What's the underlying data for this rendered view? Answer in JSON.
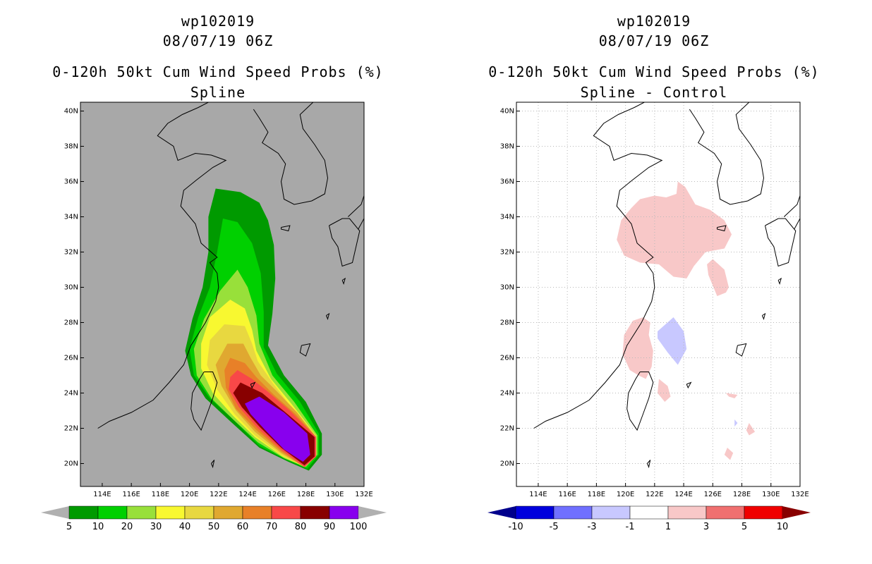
{
  "left": {
    "title_line1": "wp102019",
    "title_line2": "08/07/19 06Z",
    "title_line3": "0-120h 50kt Cum Wind Speed Probs (%)",
    "title_line4": "Spline",
    "colorbar": {
      "labels": [
        "5",
        "10",
        "20",
        "30",
        "40",
        "50",
        "60",
        "70",
        "80",
        "90",
        "100"
      ],
      "colors": [
        "#009a00",
        "#00d000",
        "#98e03a",
        "#f8f830",
        "#e8d840",
        "#e0a830",
        "#e88028",
        "#f84848",
        "#880000",
        "#8800ee"
      ],
      "arrow_color": "#b0b0b0"
    }
  },
  "right": {
    "title_line1": "wp102019",
    "title_line2": "08/07/19 06Z",
    "title_line3": "0-120h 50kt Cum Wind Speed Probs (%)",
    "title_line4": "Spline - Control",
    "colorbar": {
      "labels": [
        "-10",
        "-5",
        "-3",
        "-1",
        "1",
        "3",
        "5",
        "10"
      ],
      "colors": [
        "#0000dd",
        "#7070ff",
        "#c8c8ff",
        "#ffffff",
        "#f8c8c8",
        "#f07070",
        "#f00000"
      ],
      "arrow_left_color": "#00008c",
      "arrow_right_color": "#880000"
    }
  },
  "chart_data": [
    {
      "type": "heatmap",
      "title": "0-120h 50kt Cum Wind Speed Probs (%) - Spline",
      "storm": "wp102019",
      "valid": "08/07/19 06Z",
      "x_ticks": [
        "114E",
        "116E",
        "118E",
        "120E",
        "122E",
        "124E",
        "126E",
        "128E",
        "130E",
        "132E"
      ],
      "y_ticks": [
        "20N",
        "22N",
        "24N",
        "26N",
        "28N",
        "30N",
        "32N",
        "34N",
        "36N",
        "38N",
        "40N"
      ],
      "xlim": [
        112.5,
        132
      ],
      "ylim": [
        18.7,
        40.5
      ],
      "background_color": "#a8a8a8",
      "contour_levels": [
        5,
        10,
        20,
        30,
        40,
        50,
        60,
        70,
        80,
        90,
        100
      ],
      "contours": [
        {
          "level": 5,
          "color": "#009a00",
          "polygon": [
            [
              121.8,
              35.6
            ],
            [
              123.5,
              35.4
            ],
            [
              124.8,
              34.8
            ],
            [
              125.4,
              33.8
            ],
            [
              125.8,
              32.4
            ],
            [
              125.9,
              30.5
            ],
            [
              125.7,
              28.5
            ],
            [
              125.4,
              26.7
            ],
            [
              126.5,
              25.0
            ],
            [
              128.0,
              23.5
            ],
            [
              129.1,
              21.7
            ],
            [
              129.1,
              20.5
            ],
            [
              128.2,
              19.6
            ],
            [
              126.8,
              20.1
            ],
            [
              124.8,
              20.9
            ],
            [
              122.8,
              22.4
            ],
            [
              121.1,
              23.7
            ],
            [
              120.1,
              25.0
            ],
            [
              119.7,
              26.4
            ],
            [
              120.2,
              28.2
            ],
            [
              120.9,
              30.0
            ],
            [
              121.3,
              32.0
            ],
            [
              121.3,
              34.0
            ]
          ]
        },
        {
          "level": 10,
          "color": "#00d000",
          "polygon": [
            [
              122.3,
              33.9
            ],
            [
              123.3,
              33.7
            ],
            [
              124.3,
              32.5
            ],
            [
              124.9,
              30.8
            ],
            [
              125.1,
              28.6
            ],
            [
              125.1,
              26.6
            ],
            [
              126.0,
              25.1
            ],
            [
              127.6,
              23.5
            ],
            [
              128.9,
              21.7
            ],
            [
              128.9,
              20.5
            ],
            [
              128.1,
              19.7
            ],
            [
              126.7,
              20.2
            ],
            [
              124.8,
              21.0
            ],
            [
              123.0,
              22.5
            ],
            [
              121.4,
              23.7
            ],
            [
              120.3,
              25.0
            ],
            [
              120.0,
              26.5
            ],
            [
              120.6,
              28.3
            ],
            [
              121.4,
              30.0
            ],
            [
              121.9,
              32.0
            ]
          ]
        },
        {
          "level": 20,
          "color": "#98e03a",
          "polygon": [
            [
              123.3,
              31.0
            ],
            [
              124.0,
              30.0
            ],
            [
              124.6,
              28.4
            ],
            [
              124.8,
              26.8
            ],
            [
              125.7,
              25.0
            ],
            [
              127.2,
              23.5
            ],
            [
              128.8,
              21.6
            ],
            [
              128.8,
              20.5
            ],
            [
              128.0,
              19.8
            ],
            [
              126.5,
              20.3
            ],
            [
              124.7,
              21.2
            ],
            [
              123.0,
              22.5
            ],
            [
              121.5,
              23.7
            ],
            [
              120.5,
              25.0
            ],
            [
              120.3,
              26.5
            ],
            [
              121.0,
              28.2
            ],
            [
              122.1,
              29.8
            ]
          ]
        },
        {
          "level": 30,
          "color": "#f8f830",
          "polygon": [
            [
              122.8,
              29.3
            ],
            [
              123.8,
              28.8
            ],
            [
              124.3,
              27.6
            ],
            [
              124.6,
              26.4
            ],
            [
              125.6,
              24.8
            ],
            [
              127.0,
              23.4
            ],
            [
              128.7,
              21.6
            ],
            [
              128.7,
              20.5
            ],
            [
              127.9,
              19.8
            ],
            [
              126.4,
              20.4
            ],
            [
              124.5,
              21.5
            ],
            [
              123.0,
              22.7
            ],
            [
              121.6,
              24.0
            ],
            [
              120.8,
              25.4
            ],
            [
              120.8,
              26.8
            ],
            [
              121.4,
              28.3
            ]
          ]
        },
        {
          "level": 40,
          "color": "#e8d840",
          "polygon": [
            [
              122.4,
              27.9
            ],
            [
              123.8,
              27.8
            ],
            [
              124.3,
              26.8
            ],
            [
              124.7,
              25.8
            ],
            [
              125.7,
              24.6
            ],
            [
              127.0,
              23.2
            ],
            [
              128.7,
              21.6
            ],
            [
              128.7,
              20.4
            ],
            [
              127.9,
              19.8
            ],
            [
              126.3,
              20.5
            ],
            [
              124.5,
              21.6
            ],
            [
              123.1,
              22.8
            ],
            [
              121.9,
              24.2
            ],
            [
              121.2,
              25.6
            ],
            [
              121.4,
              27.0
            ]
          ]
        },
        {
          "level": 50,
          "color": "#e0a830",
          "polygon": [
            [
              122.6,
              26.8
            ],
            [
              123.7,
              26.8
            ],
            [
              124.2,
              26.0
            ],
            [
              124.9,
              25.0
            ],
            [
              126.0,
              24.1
            ],
            [
              127.4,
              22.9
            ],
            [
              128.7,
              21.5
            ],
            [
              128.7,
              20.4
            ],
            [
              127.9,
              19.8
            ],
            [
              126.3,
              20.6
            ],
            [
              124.5,
              21.8
            ],
            [
              123.2,
              23.0
            ],
            [
              122.2,
              24.4
            ],
            [
              121.8,
              25.6
            ]
          ]
        },
        {
          "level": 60,
          "color": "#e88028",
          "polygon": [
            [
              122.8,
              26.0
            ],
            [
              123.8,
              25.7
            ],
            [
              124.6,
              24.9
            ],
            [
              125.8,
              23.9
            ],
            [
              127.3,
              22.8
            ],
            [
              128.7,
              21.5
            ],
            [
              128.7,
              20.4
            ],
            [
              127.9,
              19.8
            ],
            [
              126.3,
              20.7
            ],
            [
              124.6,
              21.9
            ],
            [
              123.2,
              23.1
            ],
            [
              122.5,
              24.3
            ],
            [
              122.4,
              25.3
            ]
          ]
        },
        {
          "level": 70,
          "color": "#f84848",
          "polygon": [
            [
              123.3,
              25.3
            ],
            [
              124.3,
              24.8
            ],
            [
              125.5,
              24.0
            ],
            [
              126.9,
              23.0
            ],
            [
              128.7,
              21.5
            ],
            [
              128.7,
              20.4
            ],
            [
              127.9,
              19.8
            ],
            [
              126.3,
              20.8
            ],
            [
              124.7,
              22.0
            ],
            [
              123.4,
              23.2
            ],
            [
              122.7,
              24.2
            ],
            [
              122.8,
              24.9
            ]
          ]
        },
        {
          "level": 80,
          "color": "#880000",
          "polygon": [
            [
              123.5,
              24.6
            ],
            [
              125.0,
              24.0
            ],
            [
              126.6,
              22.9
            ],
            [
              128.6,
              21.5
            ],
            [
              128.6,
              20.4
            ],
            [
              127.9,
              19.9
            ],
            [
              126.3,
              20.9
            ],
            [
              124.8,
              22.1
            ],
            [
              123.6,
              23.2
            ],
            [
              123.0,
              24.0
            ]
          ]
        },
        {
          "level": 90,
          "color": "#8800ee",
          "polygon": [
            [
              124.8,
              23.8
            ],
            [
              126.5,
              22.9
            ],
            [
              128.1,
              21.7
            ],
            [
              128.3,
              20.5
            ],
            [
              127.8,
              20.1
            ],
            [
              126.5,
              20.8
            ],
            [
              125.2,
              21.9
            ],
            [
              124.2,
              22.8
            ],
            [
              123.8,
              23.4
            ]
          ]
        }
      ]
    },
    {
      "type": "heatmap",
      "title": "0-120h 50kt Cum Wind Speed Probs (%) - Spline - Control",
      "storm": "wp102019",
      "valid": "08/07/19 06Z",
      "x_ticks": [
        "114E",
        "116E",
        "118E",
        "120E",
        "122E",
        "124E",
        "126E",
        "128E",
        "130E",
        "132E"
      ],
      "y_ticks": [
        "20N",
        "22N",
        "24N",
        "26N",
        "28N",
        "30N",
        "32N",
        "34N",
        "36N",
        "38N",
        "40N"
      ],
      "xlim": [
        112.5,
        132
      ],
      "ylim": [
        18.7,
        40.5
      ],
      "background_color": "#ffffff",
      "grid": true,
      "contour_levels": [
        -10,
        -5,
        -3,
        -1,
        1,
        3,
        5,
        10
      ],
      "contours": [
        {
          "level": 1,
          "color": "#f8c8c8",
          "polygon": [
            [
              123.6,
              36.0
            ],
            [
              124.1,
              35.7
            ],
            [
              124.8,
              34.7
            ],
            [
              125.8,
              34.4
            ],
            [
              126.8,
              33.8
            ],
            [
              127.3,
              33.0
            ],
            [
              126.8,
              32.2
            ],
            [
              125.5,
              32.0
            ],
            [
              124.7,
              31.2
            ],
            [
              124.2,
              30.5
            ],
            [
              123.3,
              30.6
            ],
            [
              122.3,
              31.3
            ],
            [
              121.0,
              31.4
            ],
            [
              119.9,
              31.8
            ],
            [
              119.4,
              32.7
            ],
            [
              119.7,
              33.8
            ],
            [
              120.4,
              34.5
            ],
            [
              121.0,
              35.0
            ],
            [
              122.0,
              35.2
            ],
            [
              122.8,
              35.1
            ],
            [
              123.5,
              35.3
            ]
          ]
        },
        {
          "level": 1,
          "color": "#f8c8c8",
          "polygon": [
            [
              126.0,
              31.6
            ],
            [
              126.8,
              31.0
            ],
            [
              127.1,
              30.0
            ],
            [
              126.9,
              29.7
            ],
            [
              126.3,
              29.5
            ],
            [
              125.7,
              30.7
            ],
            [
              125.6,
              31.3
            ]
          ]
        },
        {
          "level": 1,
          "color": "#f8c8c8",
          "polygon": [
            [
              120.5,
              28.1
            ],
            [
              121.2,
              28.3
            ],
            [
              121.7,
              28.0
            ],
            [
              121.6,
              27.3
            ],
            [
              121.9,
              26.4
            ],
            [
              121.8,
              25.5
            ],
            [
              121.4,
              24.8
            ],
            [
              120.9,
              25.0
            ],
            [
              120.3,
              25.3
            ],
            [
              119.8,
              26.2
            ],
            [
              119.9,
              27.3
            ]
          ]
        },
        {
          "level": 1,
          "color": "#f8c8c8",
          "polygon": [
            [
              122.3,
              24.8
            ],
            [
              122.9,
              24.4
            ],
            [
              123.1,
              23.8
            ],
            [
              122.7,
              23.5
            ],
            [
              122.2,
              24.0
            ]
          ]
        },
        {
          "level": 1,
          "color": "#f8c8c8",
          "polygon": [
            [
              126.9,
              24.0
            ],
            [
              127.7,
              23.9
            ],
            [
              127.5,
              23.7
            ],
            [
              127.1,
              23.8
            ]
          ]
        },
        {
          "level": 1,
          "color": "#f8c8c8",
          "polygon": [
            [
              128.5,
              22.3
            ],
            [
              128.9,
              21.8
            ],
            [
              128.5,
              21.6
            ],
            [
              128.3,
              21.9
            ]
          ]
        },
        {
          "level": 1,
          "color": "#f8c8c8",
          "polygon": [
            [
              127.0,
              20.9
            ],
            [
              127.4,
              20.6
            ],
            [
              127.2,
              20.2
            ],
            [
              126.8,
              20.5
            ]
          ]
        },
        {
          "level": -1,
          "color": "#c8c8ff",
          "polygon": [
            [
              123.3,
              28.3
            ],
            [
              124.0,
              27.5
            ],
            [
              124.2,
              26.5
            ],
            [
              123.6,
              25.6
            ],
            [
              122.9,
              26.3
            ],
            [
              122.2,
              27.1
            ],
            [
              122.2,
              27.5
            ]
          ]
        },
        {
          "level": -1,
          "color": "#c8c8ff",
          "polygon": [
            [
              127.5,
              22.5
            ],
            [
              127.7,
              22.3
            ],
            [
              127.5,
              22.1
            ]
          ]
        }
      ]
    }
  ]
}
